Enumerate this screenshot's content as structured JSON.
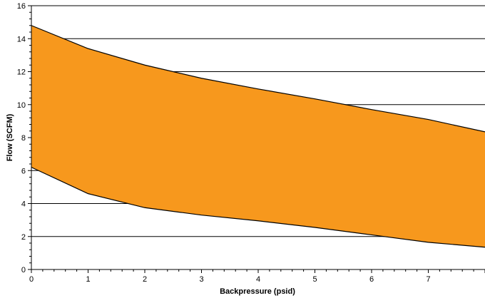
{
  "chart_data": {
    "type": "area",
    "title": "",
    "xlabel": "Backpressure (psid)",
    "ylabel": "Flow (SCFM)",
    "xlim": [
      0,
      8
    ],
    "ylim": [
      0,
      16
    ],
    "x_ticks": [
      0,
      1,
      2,
      3,
      4,
      5,
      6,
      7
    ],
    "y_ticks": [
      0,
      2,
      4,
      6,
      8,
      10,
      12,
      14,
      16
    ],
    "grid": "horizontal",
    "fill_color": "#F7981D",
    "line_color": "#000000",
    "series": [
      {
        "role": "upper",
        "x": [
          0,
          1,
          2,
          3,
          4,
          5,
          6,
          7,
          8
        ],
        "values": [
          14.8,
          13.4,
          12.4,
          11.6,
          10.95,
          10.35,
          9.7,
          9.1,
          8.35
        ]
      },
      {
        "role": "lower",
        "x": [
          0,
          1,
          2,
          3,
          4,
          5,
          6,
          7,
          8
        ],
        "values": [
          6.2,
          4.6,
          3.75,
          3.3,
          2.95,
          2.55,
          2.1,
          1.65,
          1.35
        ]
      }
    ]
  }
}
